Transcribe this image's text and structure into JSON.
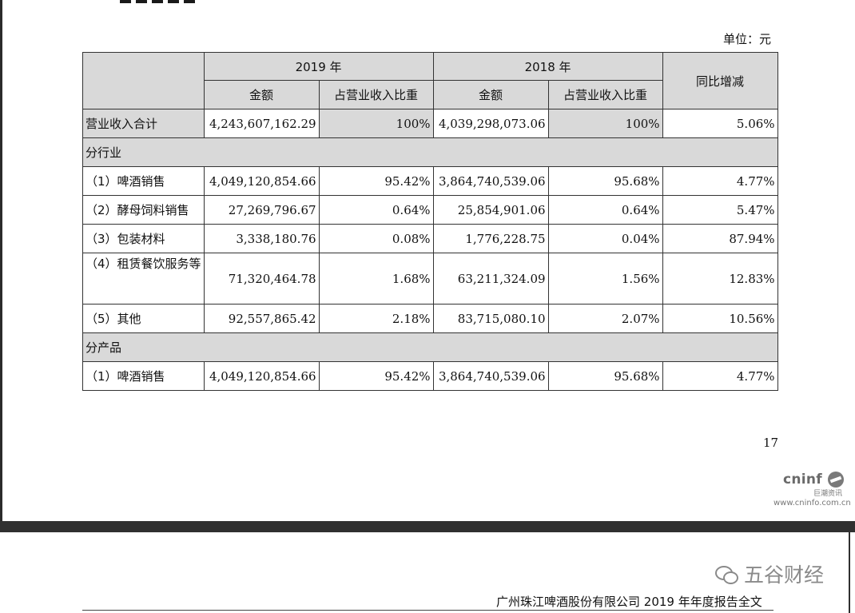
{
  "unit_label": "单位：元",
  "table": {
    "header_year_2019": "2019 年",
    "header_year_2018": "2018 年",
    "header_amount": "金额",
    "header_ratio": "占营业收入比重",
    "header_yoy": "同比增减",
    "total_row": {
      "label": "营业收入合计",
      "amount_2019": "4,243,607,162.29",
      "ratio_2019": "100%",
      "amount_2018": "4,039,298,073.06",
      "ratio_2018": "100%",
      "yoy": "5.06%"
    },
    "section_industry": "分行业",
    "industry_rows": [
      {
        "label": "（1）啤酒销售",
        "amount_2019": "4,049,120,854.66",
        "ratio_2019": "95.42%",
        "amount_2018": "3,864,740,539.06",
        "ratio_2018": "95.68%",
        "yoy": "4.77%"
      },
      {
        "label": "（2）酵母饲料销售",
        "amount_2019": "27,269,796.67",
        "ratio_2019": "0.64%",
        "amount_2018": "25,854,901.06",
        "ratio_2018": "0.64%",
        "yoy": "5.47%"
      },
      {
        "label": "（3）包装材料",
        "amount_2019": "3,338,180.76",
        "ratio_2019": "0.08%",
        "amount_2018": "1,776,228.75",
        "ratio_2018": "0.04%",
        "yoy": "87.94%"
      },
      {
        "label": "（4）租赁餐饮服务等",
        "amount_2019": "71,320,464.78",
        "ratio_2019": "1.68%",
        "amount_2018": "63,211,324.09",
        "ratio_2018": "1.56%",
        "yoy": "12.83%"
      },
      {
        "label": "（5）其他",
        "amount_2019": "92,557,865.42",
        "ratio_2019": "2.18%",
        "amount_2018": "83,715,080.10",
        "ratio_2018": "2.07%",
        "yoy": "10.56%"
      }
    ],
    "section_product": "分产品",
    "product_rows": [
      {
        "label": "（1）啤酒销售",
        "amount_2019": "4,049,120,854.66",
        "ratio_2019": "95.42%",
        "amount_2018": "3,864,740,539.06",
        "ratio_2018": "95.68%",
        "yoy": "4.77%"
      }
    ]
  },
  "page_number": "17",
  "logo": {
    "brand": "cninf",
    "chinese": "巨潮资讯",
    "url": "www.cninfo.com.cn"
  },
  "watermark": "五谷财经",
  "footer_text": "广州珠江啤酒股份有限公司 2019 年年度报告全文"
}
